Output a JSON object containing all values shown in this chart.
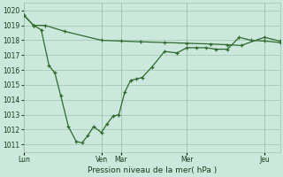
{
  "background_color": "#cce8dc",
  "grid_color": "#9dc4b0",
  "line_color": "#2d6a2d",
  "xlabel": "Pression niveau de la mer( hPa )",
  "ylim": [
    1010.5,
    1020.5
  ],
  "yticks": [
    1011,
    1012,
    1013,
    1014,
    1015,
    1016,
    1017,
    1018,
    1019,
    1020
  ],
  "xlim": [
    0,
    264
  ],
  "day_labels": [
    "Lun",
    "Ven",
    "Mar",
    "Mer",
    "Jeu"
  ],
  "day_positions": [
    0,
    80,
    100,
    168,
    248
  ],
  "series1_x": [
    0,
    10,
    22,
    42,
    80,
    100,
    120,
    145,
    168,
    192,
    210,
    224,
    248,
    264
  ],
  "series1_y": [
    1019.7,
    1019.0,
    1019.0,
    1018.6,
    1018.0,
    1017.95,
    1017.9,
    1017.85,
    1017.8,
    1017.75,
    1017.7,
    1017.65,
    1018.2,
    1017.95
  ],
  "series2_x": [
    0,
    10,
    18,
    26,
    32,
    38,
    46,
    54,
    60,
    66,
    72,
    80,
    86,
    92,
    98,
    104,
    110,
    116,
    122,
    132,
    145,
    158,
    168,
    178,
    188,
    198,
    210,
    222,
    234,
    248,
    264
  ],
  "series2_y": [
    1019.7,
    1019.0,
    1018.7,
    1016.3,
    1015.8,
    1014.3,
    1012.2,
    1011.2,
    1011.1,
    1011.6,
    1012.2,
    1011.8,
    1012.4,
    1012.9,
    1013.0,
    1014.5,
    1015.3,
    1015.4,
    1015.5,
    1016.2,
    1017.25,
    1017.15,
    1017.5,
    1017.5,
    1017.5,
    1017.4,
    1017.4,
    1018.2,
    1018.0,
    1017.95,
    1017.85
  ]
}
